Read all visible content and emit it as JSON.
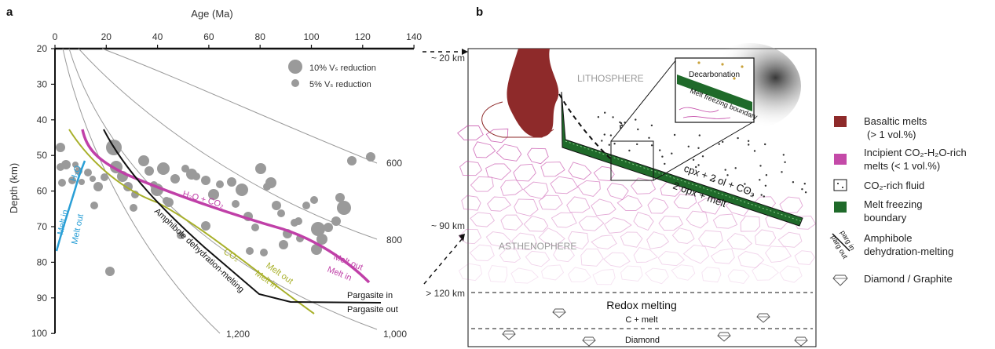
{
  "panel_a": {
    "label": "a",
    "x_title": "Age (Ma)",
    "y_title": "Depth (km)",
    "x_ticks": [
      "0",
      "20",
      "40",
      "60",
      "80",
      "100",
      "120",
      "140"
    ],
    "y_ticks": [
      "20",
      "30",
      "40",
      "50",
      "60",
      "70",
      "80",
      "90",
      "100"
    ],
    "size_legend": [
      "10% Vₛ reduction",
      "5% Vₛ reduction"
    ],
    "isotherm_labels": [
      "600",
      "800",
      "1,000",
      "1,200"
    ],
    "labels": {
      "h2o": "H₂O",
      "melt_in_blue": "Melt in",
      "melt_out_blue": "Melt out",
      "h2o_co2": "H₂O + CO₂",
      "co2": "CO₂",
      "melt_in_olive": "Melt in",
      "melt_out_olive": "Melt out",
      "amph": "Amphibole dehydration-melting",
      "melt_out_mag": "Melt out",
      "melt_in_mag": "Melt in",
      "parg_in": "Pargasite in",
      "parg_out": "Pargasite out"
    },
    "colors": {
      "h2o": "#2a9fd6",
      "h2o_co2": "#c040a8",
      "co2": "#a8b02a",
      "amph": "#111111",
      "dots": "#9a9a9a"
    }
  },
  "panel_b": {
    "label": "b",
    "depths": [
      "~ 20 km",
      "~ 90 km",
      "> 120 km"
    ],
    "lithosphere": "LITHOSPHERE",
    "asthenosphere": "ASTHENOPHERE",
    "reaction_top": "cpx + 2 ol + CO₂",
    "reaction_bottom": "2 opx + melt",
    "inset_decarb": "Decarbonation",
    "inset_freeze": "Melt freezing boundary",
    "redox_title": "Redox melting",
    "redox_sub": "C + melt",
    "diamond": "Diamond"
  },
  "legend": {
    "items": [
      {
        "label": "Basaltic melts",
        "sub": "(> 1 vol.%)",
        "color": "#8e2a2a"
      },
      {
        "label": "Incipient CO₂-H₂O-rich",
        "sub": "melts (< 1 vol.%)",
        "color": "#c44aa8"
      },
      {
        "label": "CO₂-rich fluid",
        "sub": "",
        "color": "#ffffff"
      },
      {
        "label": "Melt freezing",
        "sub": "boundary",
        "color": "#1f6a2a"
      },
      {
        "label": "Amphibole",
        "sub": "dehydration-melting",
        "color": ""
      },
      {
        "label": "Diamond / Graphite",
        "sub": "",
        "color": ""
      }
    ],
    "parg_in": "parg in",
    "parg_out": "parg out"
  }
}
